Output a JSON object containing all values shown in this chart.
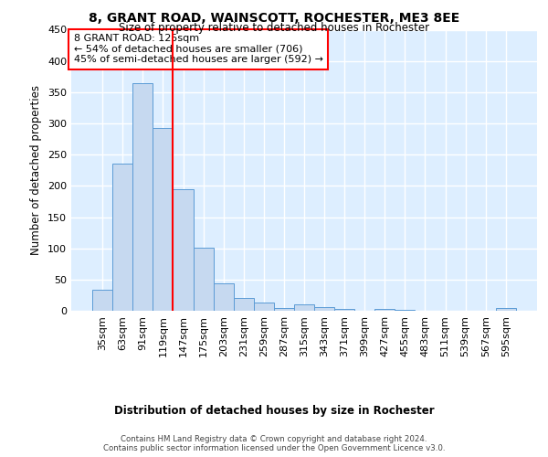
{
  "title1": "8, GRANT ROAD, WAINSCOTT, ROCHESTER, ME3 8EE",
  "title2": "Size of property relative to detached houses in Rochester",
  "xlabel": "Distribution of detached houses by size in Rochester",
  "ylabel": "Number of detached properties",
  "categories": [
    "35sqm",
    "63sqm",
    "91sqm",
    "119sqm",
    "147sqm",
    "175sqm",
    "203sqm",
    "231sqm",
    "259sqm",
    "287sqm",
    "315sqm",
    "343sqm",
    "371sqm",
    "399sqm",
    "427sqm",
    "455sqm",
    "483sqm",
    "511sqm",
    "539sqm",
    "567sqm",
    "595sqm"
  ],
  "values": [
    33,
    235,
    365,
    293,
    195,
    101,
    44,
    20,
    13,
    5,
    10,
    6,
    3,
    0,
    3,
    1,
    0,
    0,
    0,
    0,
    4
  ],
  "bar_color": "#c6d9f0",
  "bar_edge_color": "#5b9bd5",
  "vline_x": 3.5,
  "vline_color": "red",
  "annotation_line1": "8 GRANT ROAD: 125sqm",
  "annotation_line2": "← 54% of detached houses are smaller (706)",
  "annotation_line3": "45% of semi-detached houses are larger (592) →",
  "annotation_box_color": "white",
  "annotation_box_edge_color": "red",
  "ylim": [
    0,
    450
  ],
  "footer_line1": "Contains HM Land Registry data © Crown copyright and database right 2024.",
  "footer_line2": "Contains public sector information licensed under the Open Government Licence v3.0.",
  "background_color": "#ddeeff",
  "grid_color": "white"
}
